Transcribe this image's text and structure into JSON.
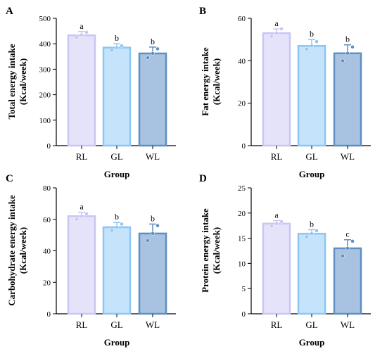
{
  "chart_data": [
    {
      "type": "bar",
      "panel": "A",
      "categories": [
        "RL",
        "GL",
        "WL"
      ],
      "values": [
        433,
        385,
        362
      ],
      "errors": [
        15,
        15,
        25
      ],
      "points": [
        [
          425,
          435,
          445
        ],
        [
          375,
          385,
          392
        ],
        [
          345,
          362,
          380
        ]
      ],
      "significance": [
        "a",
        "b",
        "b"
      ],
      "ylabel_lines": [
        "Total energy intake",
        "(Kcal/week)"
      ],
      "xlabel": "Group",
      "ylim": [
        0,
        500
      ],
      "yticks": [
        0,
        100,
        200,
        300,
        400,
        500
      ],
      "colors": {
        "fill": [
          "#e5e3fa",
          "#c5e3fb",
          "#a7c3e1"
        ],
        "edge": [
          "#c9c6f2",
          "#8ec6f3",
          "#5f8fc3"
        ]
      }
    },
    {
      "type": "bar",
      "panel": "B",
      "categories": [
        "RL",
        "GL",
        "WL"
      ],
      "values": [
        53,
        47,
        43.5
      ],
      "errors": [
        2,
        3,
        4
      ],
      "points": [
        [
          51.5,
          53,
          55
        ],
        [
          45.5,
          47,
          49
        ],
        [
          40,
          43.5,
          46.5
        ]
      ],
      "significance": [
        "a",
        "b",
        "b"
      ],
      "ylabel_lines": [
        "Fat energy intake",
        "(Kcal/week)"
      ],
      "xlabel": "Group",
      "ylim": [
        0,
        60
      ],
      "yticks": [
        0,
        20,
        40,
        60
      ],
      "colors": {
        "fill": [
          "#e5e3fa",
          "#c5e3fb",
          "#a7c3e1"
        ],
        "edge": [
          "#c9c6f2",
          "#8ec6f3",
          "#5f8fc3"
        ]
      }
    },
    {
      "type": "bar",
      "panel": "C",
      "categories": [
        "RL",
        "GL",
        "WL"
      ],
      "values": [
        62,
        55,
        51
      ],
      "errors": [
        2.5,
        3,
        6
      ],
      "points": [
        [
          60,
          62,
          63.5
        ],
        [
          53,
          55,
          57
        ],
        [
          46.5,
          51,
          56
        ]
      ],
      "significance": [
        "a",
        "b",
        "b"
      ],
      "ylabel_lines": [
        "Carbohydrate energy intake",
        "(Kcal/week)"
      ],
      "xlabel": "Group",
      "ylim": [
        0,
        80
      ],
      "yticks": [
        0,
        20,
        40,
        60,
        80
      ],
      "colors": {
        "fill": [
          "#e5e3fa",
          "#c5e3fb",
          "#a7c3e1"
        ],
        "edge": [
          "#c9c6f2",
          "#8ec6f3",
          "#5f8fc3"
        ]
      }
    },
    {
      "type": "bar",
      "panel": "D",
      "categories": [
        "RL",
        "GL",
        "WL"
      ],
      "values": [
        17.9,
        15.9,
        13
      ],
      "errors": [
        0.6,
        0.8,
        1.7
      ],
      "points": [
        [
          17.4,
          17.9,
          18.3
        ],
        [
          15.3,
          15.9,
          16.5
        ],
        [
          11.5,
          13,
          14.4
        ]
      ],
      "significance": [
        "a",
        "b",
        "c"
      ],
      "ylabel_lines": [
        "Protein energy intake",
        "(Kcal/week)"
      ],
      "xlabel": "Group",
      "ylim": [
        0,
        25
      ],
      "yticks": [
        0,
        5,
        10,
        15,
        20,
        25
      ],
      "colors": {
        "fill": [
          "#e5e3fa",
          "#c5e3fb",
          "#a7c3e1"
        ],
        "edge": [
          "#c9c6f2",
          "#8ec6f3",
          "#5f8fc3"
        ]
      }
    }
  ]
}
